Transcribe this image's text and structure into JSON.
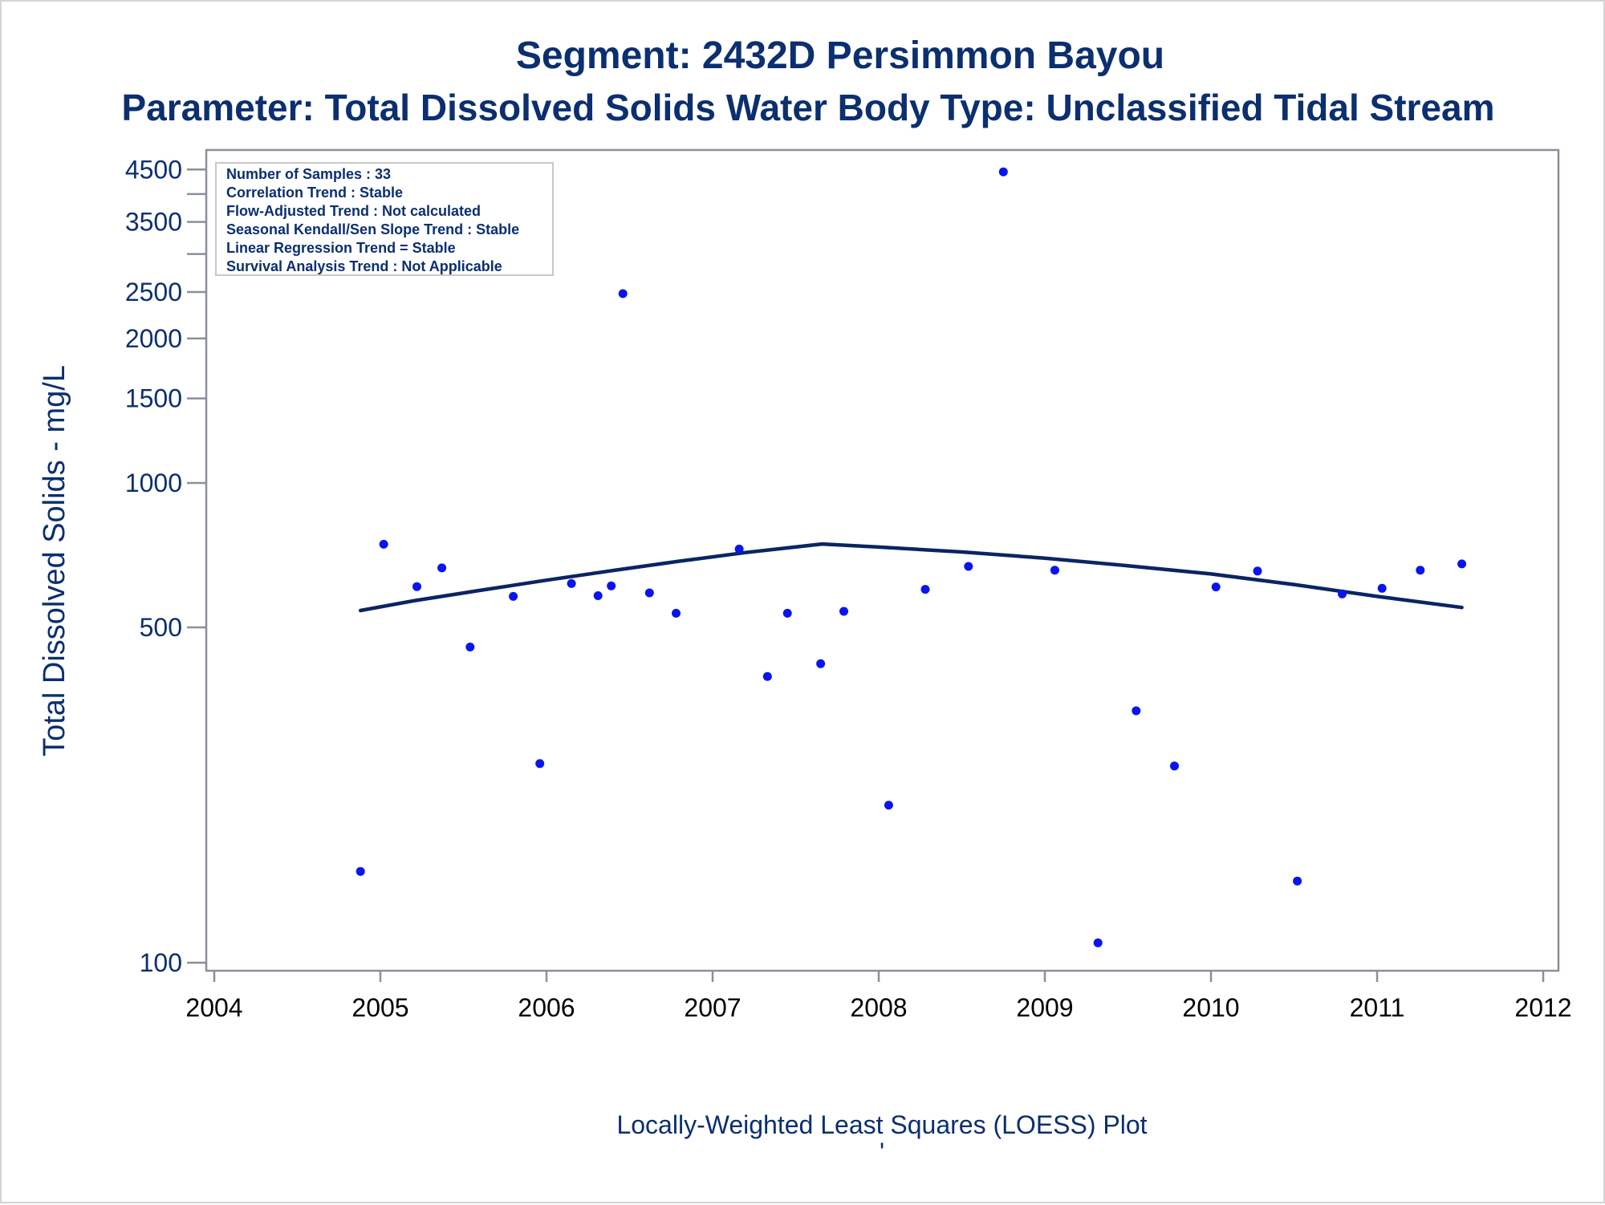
{
  "colors": {
    "text": "#0b2f6f",
    "axis": "#8a8f99",
    "point": "#0a14f0",
    "loess": "#0b2463"
  },
  "chart_data": {
    "type": "scatter",
    "title": "Segment: 2432D  Persimmon Bayou",
    "subtitle": "Parameter: Total Dissolved Solids   Water Body Type: Unclassified Tidal Stream",
    "xlabel": "Locally-Weighted Least Squares (LOESS) Plot",
    "ylabel": "Total Dissolved Solids - mg/L",
    "footnote": "'",
    "x_range": [
      2004,
      2012
    ],
    "x_ticks": [
      "2004",
      "2005",
      "2006",
      "2007",
      "2008",
      "2009",
      "2010",
      "2011",
      "2012"
    ],
    "y_scale": "log",
    "y_range": [
      100,
      4700
    ],
    "y_ticks": [
      100,
      500,
      1000,
      1500,
      2000,
      2500,
      3500,
      4500
    ],
    "y_tick_labels": [
      "100",
      "500",
      "1000",
      "1500",
      "2000",
      "2500",
      "3500",
      "4500"
    ],
    "y_minor_ticks": [
      3000,
      4000
    ],
    "info_box": [
      "Number of Samples : 33",
      "Correlation Trend : Stable",
      "Flow-Adjusted Trend : Not calculated",
      "Seasonal Kendall/Sen Slope Trend : Stable",
      "Linear Regression Trend = Stable",
      "Survival Analysis Trend : Not Applicable"
    ],
    "samples": [
      {
        "x": 2004.88,
        "y": 155
      },
      {
        "x": 2005.02,
        "y": 745
      },
      {
        "x": 2005.22,
        "y": 608
      },
      {
        "x": 2005.37,
        "y": 665
      },
      {
        "x": 2005.54,
        "y": 455
      },
      {
        "x": 2005.8,
        "y": 580
      },
      {
        "x": 2005.96,
        "y": 260
      },
      {
        "x": 2006.15,
        "y": 617
      },
      {
        "x": 2006.31,
        "y": 582
      },
      {
        "x": 2006.39,
        "y": 610
      },
      {
        "x": 2006.46,
        "y": 2480
      },
      {
        "x": 2006.62,
        "y": 590
      },
      {
        "x": 2006.78,
        "y": 535
      },
      {
        "x": 2007.16,
        "y": 728
      },
      {
        "x": 2007.33,
        "y": 395
      },
      {
        "x": 2007.45,
        "y": 535
      },
      {
        "x": 2007.65,
        "y": 420
      },
      {
        "x": 2007.79,
        "y": 540
      },
      {
        "x": 2008.06,
        "y": 213
      },
      {
        "x": 2008.28,
        "y": 600
      },
      {
        "x": 2008.54,
        "y": 670
      },
      {
        "x": 2008.75,
        "y": 4450
      },
      {
        "x": 2009.06,
        "y": 658
      },
      {
        "x": 2009.32,
        "y": 110
      },
      {
        "x": 2009.55,
        "y": 335
      },
      {
        "x": 2009.78,
        "y": 257
      },
      {
        "x": 2010.03,
        "y": 607
      },
      {
        "x": 2010.28,
        "y": 655
      },
      {
        "x": 2010.52,
        "y": 148
      },
      {
        "x": 2010.79,
        "y": 587
      },
      {
        "x": 2011.03,
        "y": 603
      },
      {
        "x": 2011.26,
        "y": 658
      },
      {
        "x": 2011.51,
        "y": 678
      }
    ],
    "loess": [
      {
        "x": 2004.88,
        "y": 542
      },
      {
        "x": 2005.2,
        "y": 568
      },
      {
        "x": 2005.6,
        "y": 597
      },
      {
        "x": 2006.0,
        "y": 627
      },
      {
        "x": 2006.4,
        "y": 657
      },
      {
        "x": 2006.8,
        "y": 687
      },
      {
        "x": 2007.2,
        "y": 716
      },
      {
        "x": 2007.66,
        "y": 746
      },
      {
        "x": 2008.0,
        "y": 735
      },
      {
        "x": 2008.5,
        "y": 718
      },
      {
        "x": 2009.0,
        "y": 697
      },
      {
        "x": 2009.5,
        "y": 672
      },
      {
        "x": 2010.0,
        "y": 646
      },
      {
        "x": 2010.5,
        "y": 614
      },
      {
        "x": 2011.0,
        "y": 580
      },
      {
        "x": 2011.51,
        "y": 550
      }
    ]
  }
}
